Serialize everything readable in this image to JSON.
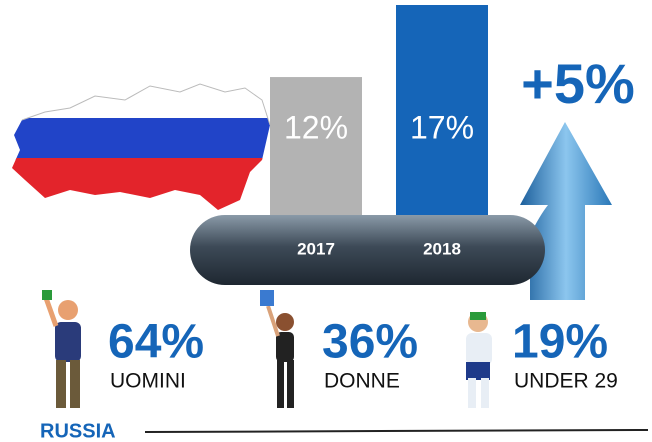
{
  "chart_data": {
    "type": "bar",
    "categories": [
      "2017",
      "2018"
    ],
    "values": [
      12,
      17
    ],
    "value_labels": [
      "12%",
      "17%"
    ],
    "colors": [
      "#b3b3b3",
      "#1565b8"
    ],
    "annotation": "+5%"
  },
  "stats": [
    {
      "value": "64%",
      "label": "UOMINI"
    },
    {
      "value": "36%",
      "label": "DONNE"
    },
    {
      "value": "19%",
      "label": "UNDER 29"
    }
  ],
  "footer": "RUSSIA"
}
